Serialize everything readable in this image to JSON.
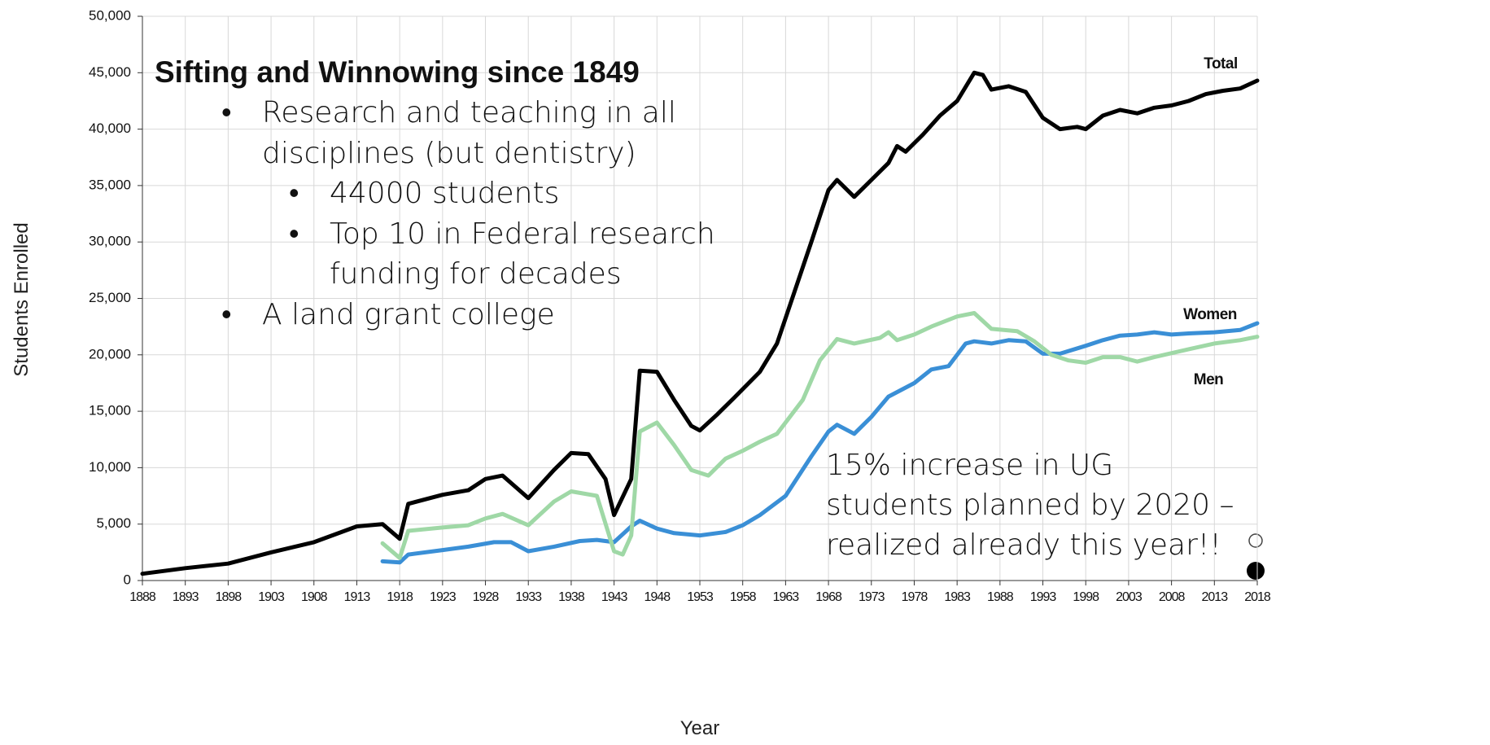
{
  "chart_data": {
    "type": "line",
    "xlabel": "Year",
    "ylabel": "Students Enrolled",
    "xlim": [
      1888,
      2018
    ],
    "xticks": [
      1888,
      1893,
      1898,
      1903,
      1908,
      1913,
      1918,
      1923,
      1928,
      1933,
      1938,
      1943,
      1948,
      1953,
      1958,
      1963,
      1968,
      1973,
      1978,
      1983,
      1988,
      1993,
      1998,
      2003,
      2008,
      2013,
      2018
    ],
    "ylim": [
      0,
      50000
    ],
    "yticks": [
      0,
      {
        "value": 5000,
        "label": "5,000"
      },
      {
        "value": 10000,
        "label": "10,000"
      },
      {
        "value": 15000,
        "label": "15,000"
      },
      {
        "value": 20000,
        "label": "20,000"
      },
      {
        "value": 25000,
        "label": "25,000"
      },
      {
        "value": 30000,
        "label": "30,000"
      },
      {
        "value": 35000,
        "label": "35,000"
      },
      {
        "value": 40000,
        "label": "40,000"
      },
      {
        "value": 45000,
        "label": "45,000"
      },
      {
        "value": 50000,
        "label": "50,000"
      }
    ],
    "grid": true,
    "series": [
      {
        "name": "Total",
        "color": "#000000",
        "x": [
          1888,
          1893,
          1898,
          1903,
          1908,
          1913,
          1916,
          1918,
          1919,
          1923,
          1926,
          1928,
          1930,
          1933,
          1936,
          1938,
          1940,
          1942,
          1943,
          1945,
          1946,
          1948,
          1950,
          1952,
          1953,
          1955,
          1957,
          1960,
          1962,
          1964,
          1966,
          1968,
          1969,
          1971,
          1973,
          1975,
          1976,
          1977,
          1979,
          1981,
          1983,
          1985,
          1986,
          1987,
          1989,
          1991,
          1993,
          1995,
          1997,
          1998,
          2000,
          2002,
          2004,
          2006,
          2008,
          2010,
          2012,
          2014,
          2016,
          2018
        ],
        "values": [
          600,
          1100,
          1500,
          2500,
          3400,
          4800,
          5000,
          3700,
          6800,
          7600,
          8000,
          9000,
          9300,
          7300,
          9800,
          11300,
          11200,
          9000,
          5800,
          9000,
          18600,
          18500,
          16000,
          13700,
          13300,
          14700,
          16200,
          18500,
          21000,
          25500,
          30000,
          34600,
          35500,
          34000,
          35500,
          37000,
          38500,
          38000,
          39500,
          41200,
          42500,
          45000,
          44800,
          43500,
          43800,
          43300,
          41000,
          40000,
          40200,
          40000,
          41200,
          41700,
          41400,
          41900,
          42100,
          42500,
          43100,
          43400,
          43600,
          44300
        ]
      },
      {
        "name": "Women",
        "color": "#3a8fd6",
        "x": [
          1916,
          1918,
          1919,
          1923,
          1926,
          1929,
          1931,
          1933,
          1936,
          1939,
          1941,
          1943,
          1945,
          1946,
          1948,
          1950,
          1953,
          1956,
          1958,
          1960,
          1963,
          1966,
          1968,
          1969,
          1971,
          1973,
          1975,
          1978,
          1980,
          1982,
          1984,
          1985,
          1987,
          1989,
          1991,
          1993,
          1995,
          1998,
          2000,
          2002,
          2004,
          2006,
          2008,
          2010,
          2013,
          2016,
          2018
        ],
        "values": [
          1700,
          1600,
          2300,
          2700,
          3000,
          3400,
          3400,
          2600,
          3000,
          3500,
          3600,
          3400,
          4800,
          5300,
          4600,
          4200,
          4000,
          4300,
          4900,
          5800,
          7500,
          11000,
          13200,
          13800,
          13000,
          14500,
          16300,
          17500,
          18700,
          19000,
          21000,
          21200,
          21000,
          21300,
          21200,
          20100,
          20100,
          20800,
          21300,
          21700,
          21800,
          22000,
          21800,
          21900,
          22000,
          22200,
          22800
        ]
      },
      {
        "name": "Men",
        "color": "#9fd8a6",
        "x": [
          1916,
          1918,
          1919,
          1923,
          1926,
          1928,
          1930,
          1933,
          1936,
          1938,
          1941,
          1943,
          1944,
          1945,
          1946,
          1948,
          1950,
          1952,
          1954,
          1956,
          1958,
          1960,
          1962,
          1965,
          1967,
          1969,
          1971,
          1974,
          1975,
          1976,
          1978,
          1980,
          1983,
          1985,
          1987,
          1990,
          1992,
          1994,
          1996,
          1998,
          2000,
          2002,
          2004,
          2006,
          2010,
          2013,
          2016,
          2018
        ],
        "values": [
          3300,
          2000,
          4400,
          4700,
          4900,
          5500,
          5900,
          4900,
          7000,
          7900,
          7500,
          2600,
          2300,
          4000,
          13200,
          14000,
          12000,
          9800,
          9300,
          10800,
          11500,
          12300,
          13000,
          16000,
          19500,
          21400,
          21000,
          21500,
          22000,
          21300,
          21800,
          22500,
          23400,
          23700,
          22300,
          22100,
          21200,
          20000,
          19500,
          19300,
          19800,
          19800,
          19400,
          19800,
          20500,
          21000,
          21300,
          21600
        ]
      }
    ]
  },
  "overlay": {
    "title": "Sifting and Winnowing since 1849",
    "bullets": [
      {
        "marker": "•",
        "lines": [
          "Research and teaching in all",
          "disciplines (but dentistry)"
        ],
        "level": 1
      },
      {
        "marker": "•",
        "lines": [
          "44000 students"
        ],
        "level": 2
      },
      {
        "marker": "•",
        "lines": [
          "Top 10 in Federal research",
          "funding for decades"
        ],
        "level": 2
      },
      {
        "marker": "•",
        "lines": [
          "A land grant college"
        ],
        "level": 1
      }
    ],
    "note": [
      "15% increase in UG",
      "students planned by 2020 –",
      "realized already this year!!"
    ]
  }
}
